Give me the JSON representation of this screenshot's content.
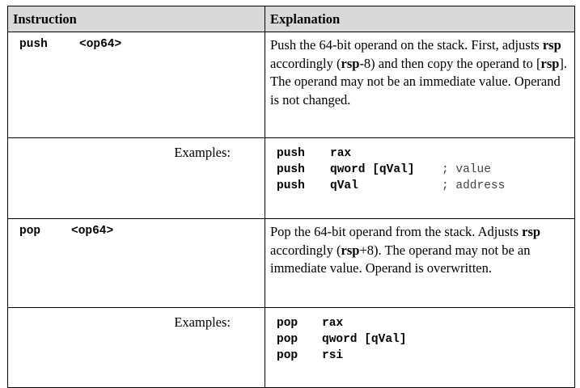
{
  "headers": {
    "instruction": "Instruction",
    "explanation": "Explanation"
  },
  "push": {
    "mnemonic": "push",
    "operand": "<op64>",
    "explanation_parts": [
      "Push the 64-bit operand on the stack. First, adjusts ",
      "rsp",
      " accordingly (",
      "rsp",
      "-8) and then copy the operand to [",
      "rsp",
      "].  The operand may not be an immediate value.  Operand is not changed."
    ],
    "examples_label": "Examples:",
    "examples": [
      {
        "op": "push",
        "arg": "rax",
        "comment": ""
      },
      {
        "op": "push",
        "arg": "qword [qVal]",
        "comment": "; value"
      },
      {
        "op": "push",
        "arg": "qVal",
        "comment": "; address"
      }
    ]
  },
  "pop": {
    "mnemonic": "pop",
    "operand": "<op64>",
    "explanation_parts": [
      "Pop the 64-bit operand from the stack.  Adjusts ",
      "rsp",
      " accordingly (",
      "rsp",
      "+8).  The operand may not be an immediate value.  Operand is overwritten."
    ],
    "examples_label": "Examples:",
    "examples": [
      {
        "op": "pop",
        "arg": "rax",
        "comment": ""
      },
      {
        "op": "pop",
        "arg": "qword [qVal]",
        "comment": ""
      },
      {
        "op": "pop",
        "arg": "rsi",
        "comment": ""
      }
    ]
  }
}
